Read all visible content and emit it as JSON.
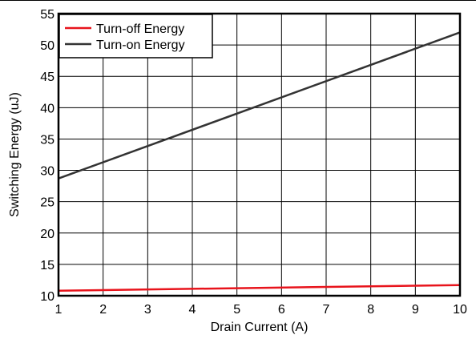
{
  "chart_data": {
    "type": "line",
    "xlabel": "Drain Current (A)",
    "ylabel": "Switching Energy (uJ)",
    "xlim": [
      1,
      10
    ],
    "ylim": [
      10,
      55
    ],
    "x_ticks": [
      "1",
      "2",
      "3",
      "4",
      "5",
      "6",
      "7",
      "8",
      "9",
      "10"
    ],
    "y_ticks": [
      "10",
      "15",
      "20",
      "25",
      "30",
      "35",
      "40",
      "45",
      "50",
      "55"
    ],
    "grid": true,
    "legend_position": "top-left",
    "series": [
      {
        "name": "Turn-off Energy",
        "color": "#e8141c",
        "x": [
          1,
          10
        ],
        "y": [
          10.8,
          11.7
        ]
      },
      {
        "name": "Turn-on Energy",
        "color": "#333333",
        "x": [
          1,
          10
        ],
        "y": [
          28.7,
          52.0
        ]
      }
    ]
  }
}
